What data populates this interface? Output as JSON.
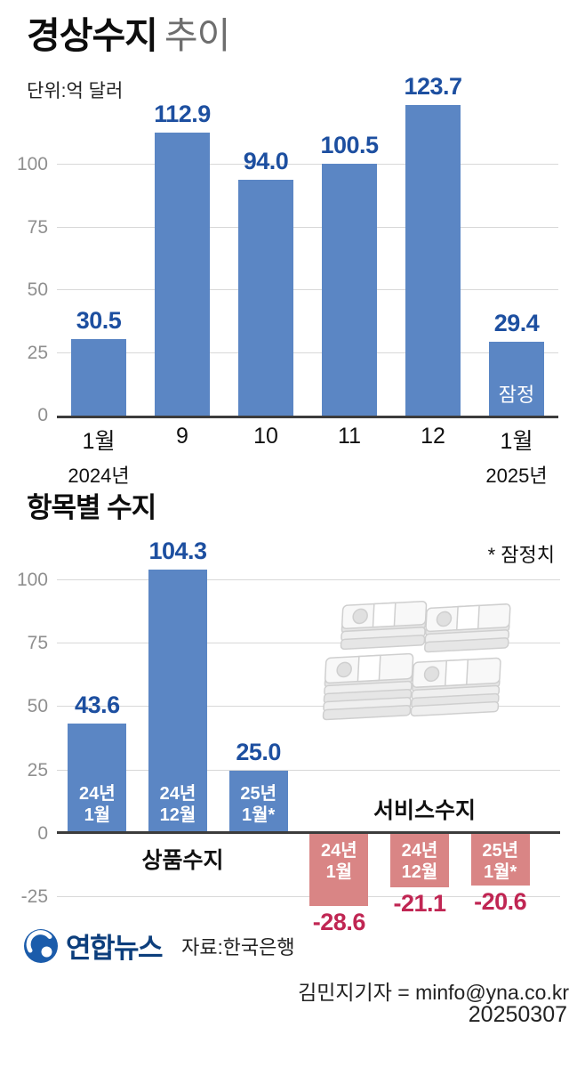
{
  "header": {
    "title_main": "경상수지",
    "title_sub": "추이",
    "unit": "단위:억 달러"
  },
  "chart_data": [
    {
      "type": "bar",
      "title": "경상수지 추이",
      "unit": "억 달러",
      "categories": [
        "1월",
        "9",
        "10",
        "11",
        "12",
        "1월"
      ],
      "sub_labels": [
        "2024년",
        "",
        "",
        "",
        "",
        "2025년"
      ],
      "values": [
        30.5,
        112.9,
        94.0,
        100.5,
        123.7,
        29.4
      ],
      "provisional_bar_index": 5,
      "provisional_label": "잠정",
      "ylim": [
        0,
        126
      ],
      "ticks": [
        0,
        25,
        50,
        75,
        100
      ],
      "grid": true,
      "bar_color": "#5b86c4",
      "value_label_color": "#1d4fa0"
    },
    {
      "type": "bar",
      "title": "항목별 수지",
      "note": "* 잠정치",
      "ylim": [
        -38,
        107
      ],
      "ticks": [
        -25,
        0,
        25,
        50,
        75,
        100
      ],
      "grid": true,
      "positive_color": "#5b86c4",
      "negative_color": "#d98585",
      "positive_label_color": "#1d4fa0",
      "negative_label_color": "#c02653",
      "groups": [
        {
          "name": "상품수지",
          "bars": [
            {
              "label": "24년 1월",
              "value": 43.6
            },
            {
              "label": "24년 12월",
              "value": 104.3
            },
            {
              "label": "25년 1월*",
              "value": 25.0
            }
          ]
        },
        {
          "name": "서비스수지",
          "bars": [
            {
              "label": "24년 1월",
              "value": -28.6
            },
            {
              "label": "24년 12월",
              "value": -21.1
            },
            {
              "label": "25년 1월*",
              "value": -20.6
            }
          ]
        }
      ]
    }
  ],
  "footer": {
    "logo_text": "연합뉴스",
    "source": "자료:한국은행",
    "credit": "김민지기자 = minfo@yna.co.kr",
    "date": "20250307",
    "logo_color": "#1b5cab"
  }
}
